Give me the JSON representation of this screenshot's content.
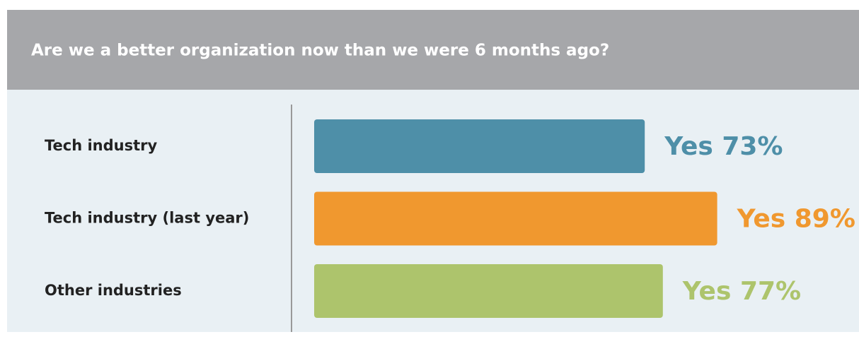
{
  "chart_data": {
    "type": "hbar",
    "title": "Are we a better organization now than we were 6 months ago?",
    "categories": [
      "Tech industry",
      "Tech industry (last year)",
      "Other industries"
    ],
    "values": [
      73,
      89,
      77
    ],
    "value_labels": [
      "Yes 73%",
      "Yes 89%",
      "Yes 77%"
    ],
    "colors": [
      "#4e8fa8",
      "#f0982f",
      "#adc46c"
    ]
  }
}
